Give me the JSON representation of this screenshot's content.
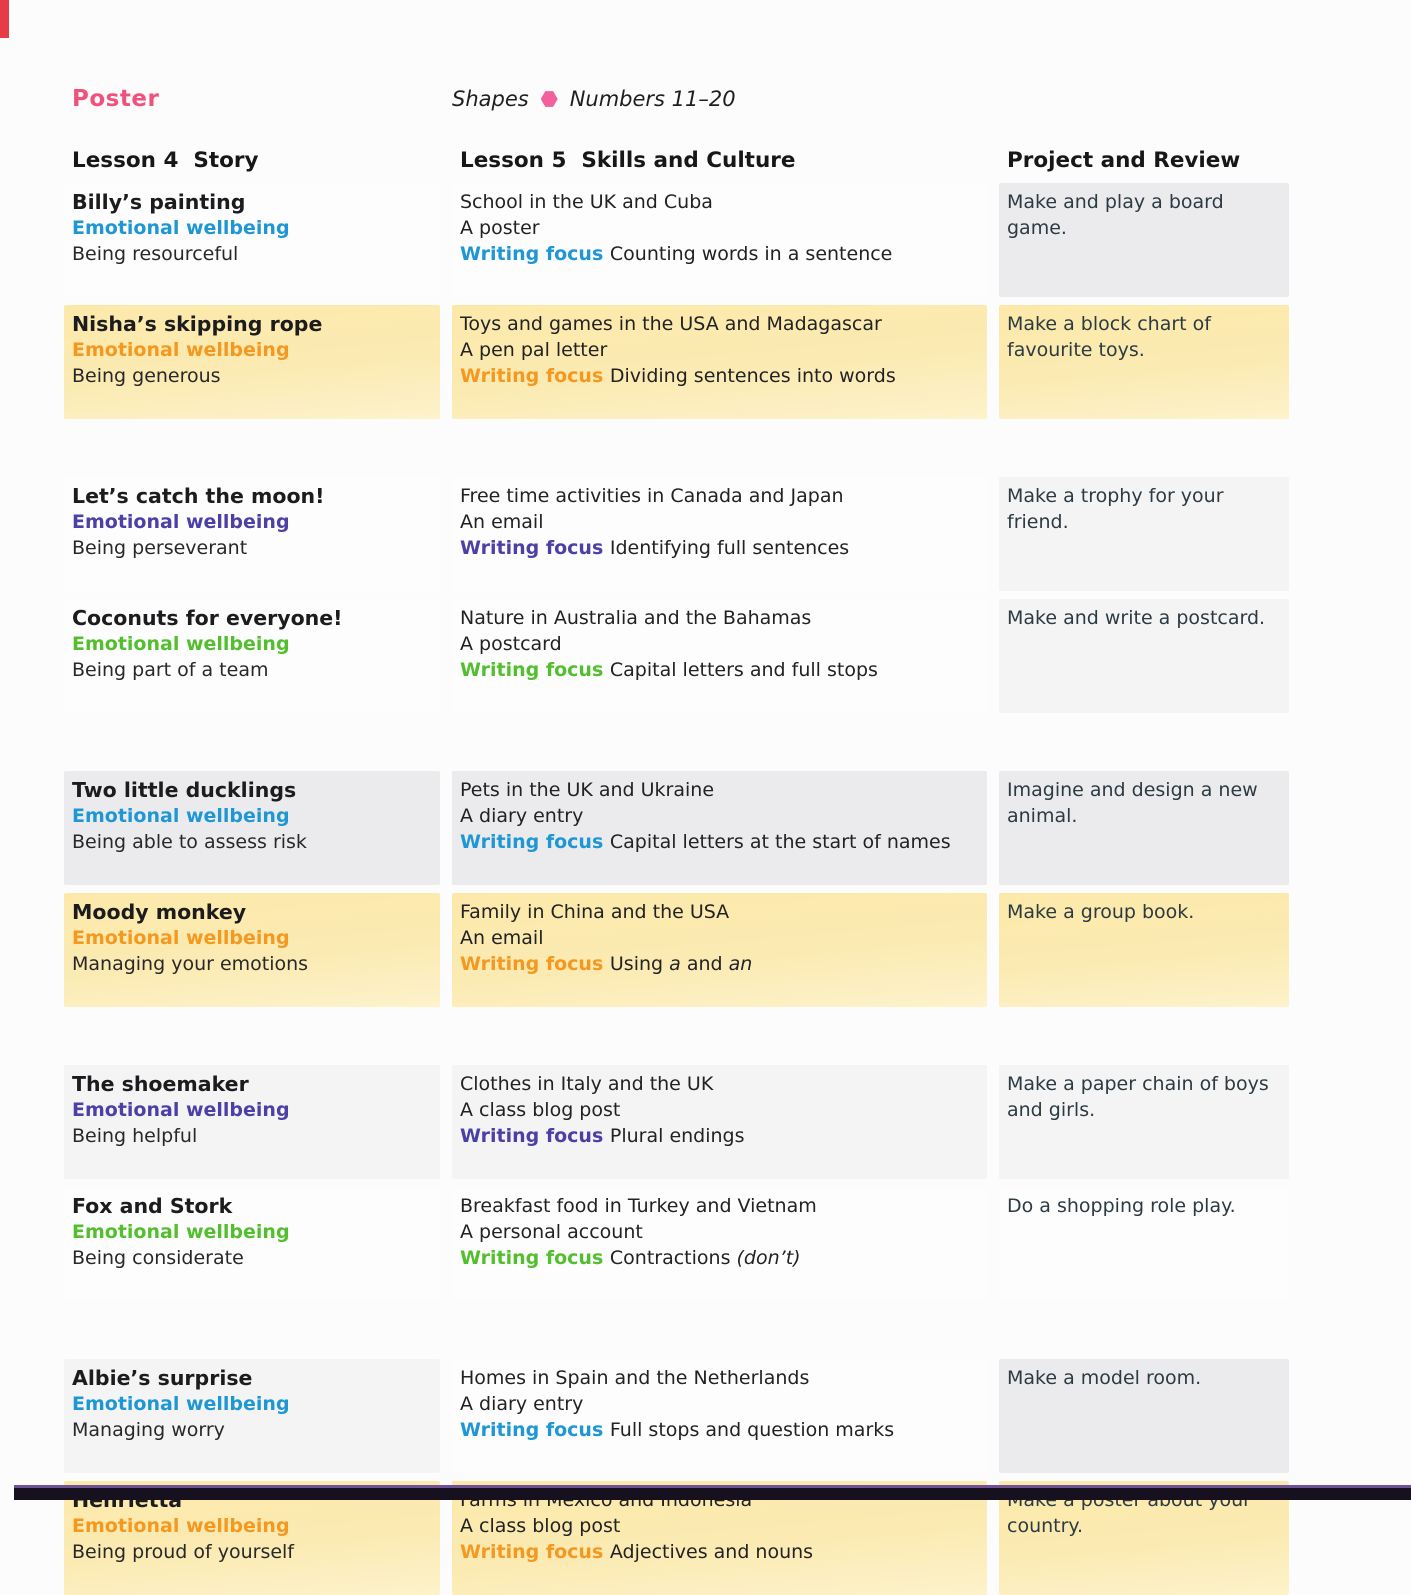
{
  "page": {
    "poster_label": "Poster",
    "topics": {
      "first": "Shapes",
      "second": "Numbers 11–20"
    },
    "column_headers": [
      "Lesson 4  Story",
      "Lesson 5  Skills and Culture",
      "Project and Review"
    ],
    "colors": {
      "poster_pink": "#f0527b",
      "hexagon_pink": "#f2609e",
      "blue": "#1e97d4",
      "orange": "#f5981f",
      "purple": "#4c40a6",
      "green": "#53bf2e"
    }
  },
  "rows": [
    {
      "story_title": "Billy’s painting",
      "wellbeing_label": "Emotional wellbeing",
      "trait": "Being resourceful",
      "accent": "blue",
      "culture_topic": "School in the UK and Cuba",
      "text_type": "A poster",
      "writing_focus_label": "Writing focus",
      "writing_focus": [
        {
          "t": "Counting words in a sentence"
        }
      ],
      "project": "Make and play a board game.",
      "cell_tones": [
        "white",
        "white",
        "gray"
      ]
    },
    {
      "story_title": "Nisha’s skipping rope",
      "wellbeing_label": "Emotional wellbeing",
      "trait": "Being generous",
      "accent": "orange",
      "culture_topic": "Toys and games in the USA and Madagascar",
      "text_type": "A pen pal letter",
      "writing_focus_label": "Writing focus",
      "writing_focus": [
        {
          "t": "Dividing sentences into words"
        }
      ],
      "project": "Make a block chart of favourite toys.",
      "cell_tones": [
        "yellow",
        "yellow",
        "yellow"
      ]
    },
    {
      "story_title": "Let’s catch the moon!",
      "wellbeing_label": "Emotional wellbeing",
      "trait": "Being perseverant",
      "accent": "purple",
      "culture_topic": "Free time activities in Canada and Japan",
      "text_type": "An email",
      "writing_focus_label": "Writing focus",
      "writing_focus": [
        {
          "t": "Identifying full sentences"
        }
      ],
      "project": "Make a trophy for your friend.",
      "cell_tones": [
        "white",
        "white",
        "light"
      ]
    },
    {
      "story_title": "Coconuts for everyone!",
      "wellbeing_label": "Emotional wellbeing",
      "trait": "Being part of a team",
      "accent": "green",
      "culture_topic": "Nature in Australia and the Bahamas",
      "text_type": "A postcard",
      "writing_focus_label": "Writing focus",
      "writing_focus": [
        {
          "t": "Capital letters and full stops"
        }
      ],
      "project": "Make and write a postcard.",
      "cell_tones": [
        "white",
        "white",
        "light"
      ]
    },
    {
      "story_title": "Two little ducklings",
      "wellbeing_label": "Emotional wellbeing",
      "trait": "Being able to assess risk",
      "accent": "blue",
      "culture_topic": "Pets in the UK and Ukraine",
      "text_type": "A diary entry",
      "writing_focus_label": "Writing focus",
      "writing_focus": [
        {
          "t": "Capital letters at the start of names"
        }
      ],
      "project": "Imagine and design a new animal.",
      "cell_tones": [
        "gray",
        "gray",
        "gray"
      ]
    },
    {
      "story_title": "Moody monkey",
      "wellbeing_label": "Emotional wellbeing",
      "trait": "Managing your emotions",
      "accent": "orange",
      "culture_topic": "Family in China and the USA",
      "text_type": "An email",
      "writing_focus_label": "Writing focus",
      "writing_focus": [
        {
          "t": "Using "
        },
        {
          "t": "a",
          "i": true
        },
        {
          "t": " and "
        },
        {
          "t": "an",
          "i": true
        }
      ],
      "project": "Make a group book.",
      "cell_tones": [
        "yellow",
        "yellow",
        "yellow"
      ]
    },
    {
      "story_title": "The shoemaker",
      "wellbeing_label": "Emotional wellbeing",
      "trait": "Being helpful",
      "accent": "purple",
      "culture_topic": "Clothes in Italy and the UK",
      "text_type": "A class blog post",
      "writing_focus_label": "Writing focus",
      "writing_focus": [
        {
          "t": " Plural endings"
        }
      ],
      "project": "Make a paper chain of boys and girls.",
      "cell_tones": [
        "light",
        "light",
        "light"
      ]
    },
    {
      "story_title": "Fox and Stork",
      "wellbeing_label": "Emotional wellbeing",
      "trait": "Being considerate",
      "accent": "green",
      "culture_topic": "Breakfast food in Turkey and Vietnam",
      "text_type": "A personal account",
      "writing_focus_label": "Writing focus",
      "writing_focus": [
        {
          "t": "Contractions "
        },
        {
          "t": "(don’t)",
          "i": true
        }
      ],
      "project": "Do a shopping role play.",
      "cell_tones": [
        "white",
        "white",
        "white"
      ]
    },
    {
      "story_title": "Albie’s surprise",
      "wellbeing_label": "Emotional wellbeing",
      "trait": "Managing worry",
      "accent": "blue",
      "culture_topic": "Homes in Spain and the Netherlands",
      "text_type": "A diary entry",
      "writing_focus_label": "Writing focus",
      "writing_focus": [
        {
          "t": "Full stops and question marks"
        }
      ],
      "project": "Make a model room.",
      "cell_tones": [
        "light",
        "white",
        "gray"
      ]
    },
    {
      "story_title": "Henrietta",
      "wellbeing_label": "Emotional wellbeing",
      "trait": "Being proud of yourself",
      "accent": "orange",
      "culture_topic": "Farms in Mexico and Indonesia",
      "text_type": "A class blog post",
      "writing_focus_label": "Writing focus",
      "writing_focus": [
        {
          "t": "Adjectives and nouns"
        }
      ],
      "project": "Make a poster about your country.",
      "cell_tones": [
        "yellow",
        "yellow",
        "yellow"
      ]
    }
  ]
}
